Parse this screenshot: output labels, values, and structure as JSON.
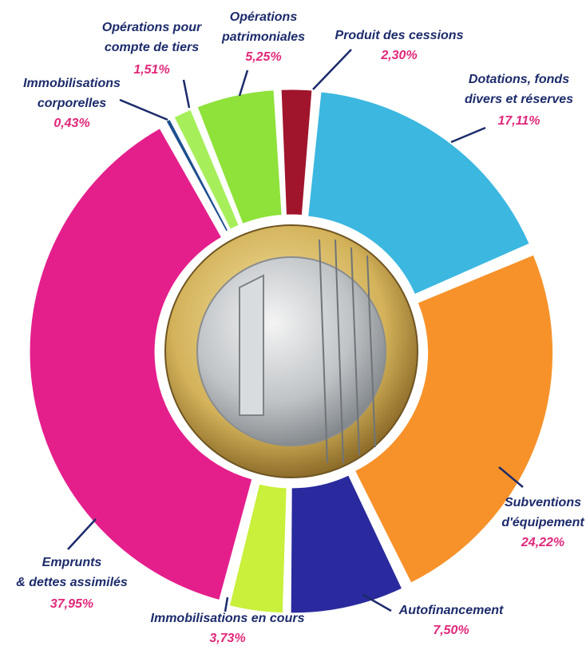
{
  "chart_data": {
    "type": "donut",
    "categories": [
      "Produit des cessions",
      "Dotations, fonds\ndivers et réserves",
      "Subventions\nd'équipement",
      "Autofinancement",
      "Immobilisations en cours",
      "Emprunts\n& dettes assimilés",
      "Immobilisations\ncorporelles",
      "Opérations pour\ncompte de tiers",
      "Opérations\npatrimoniales"
    ],
    "values": [
      2.3,
      17.11,
      24.22,
      7.5,
      3.73,
      37.95,
      0.43,
      1.51,
      5.25
    ],
    "value_labels": [
      "2,30%",
      "17,11%",
      "24,22%",
      "7,50%",
      "3,73%",
      "37,95%",
      "0,43%",
      "1,51%",
      "5,25%"
    ],
    "colors": [
      "#a0152c",
      "#3bb7e0",
      "#f7922a",
      "#2a2a9e",
      "#c9f03a",
      "#e41f8c",
      "#1e4f8f",
      "#a6ef5a",
      "#8fe23a"
    ]
  }
}
